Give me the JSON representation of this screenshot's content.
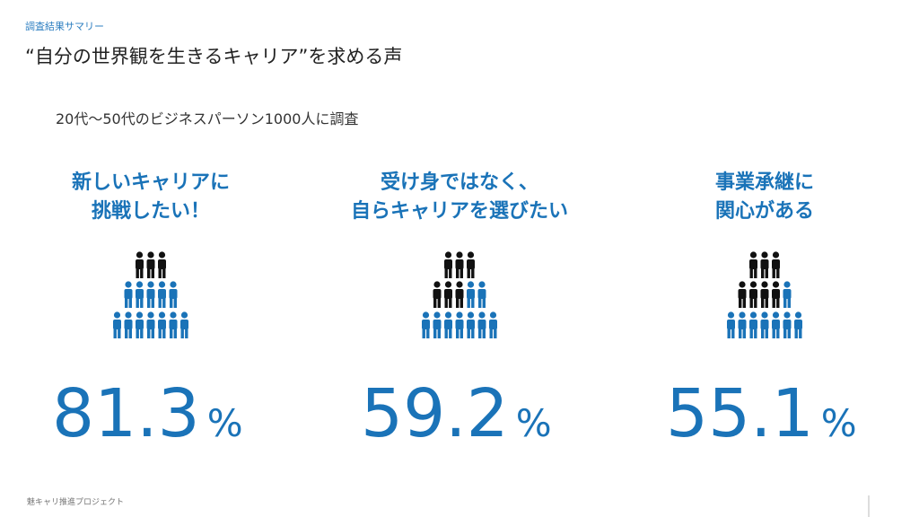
{
  "header": {
    "label": "調査結果サマリー",
    "title": "“自分の世界観を生きるキャリア”を求める声",
    "subtitle": "20代〜50代のビジネスパーソン1000人に調査"
  },
  "items": [
    {
      "heading": [
        "新しいキャリアに",
        "挑戦したい！"
      ],
      "value": 81.3,
      "unit": "%"
    },
    {
      "heading": [
        "受け身ではなく、",
        "自らキャリアを選びたい"
      ],
      "value": 59.2,
      "unit": "%"
    },
    {
      "heading": [
        "事業承継に",
        "関心がある"
      ],
      "value": 55.1,
      "unit": "%"
    }
  ],
  "footer": {
    "text": "魅キャリ推進プロジェクト"
  }
}
